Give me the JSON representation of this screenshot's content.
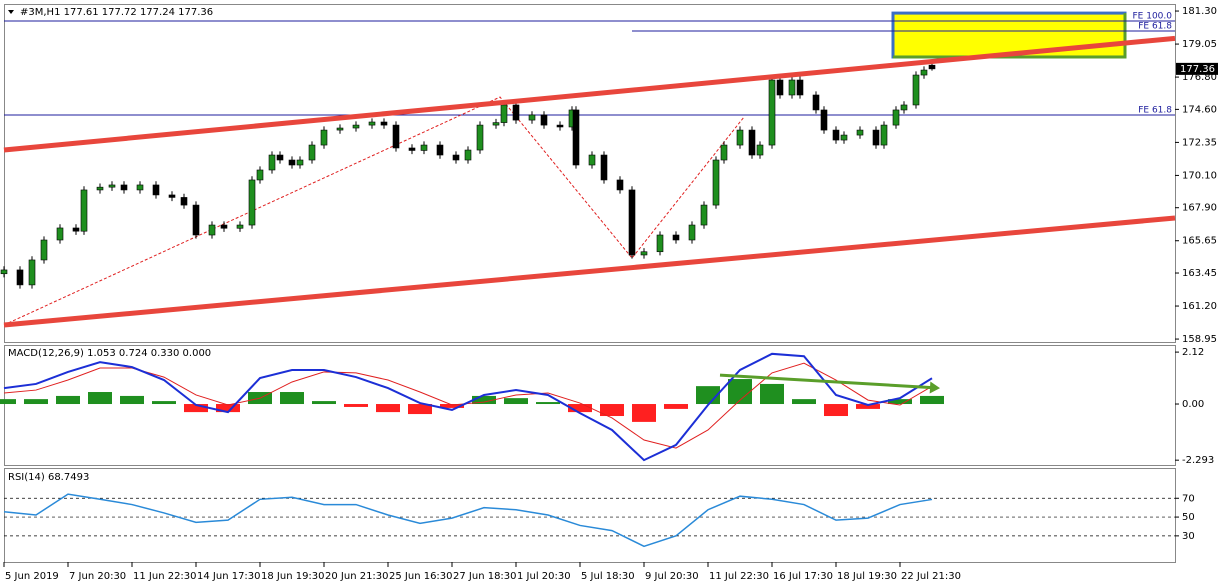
{
  "chart_data": [
    {
      "type": "candlestick",
      "title": "#3M,H1  177.61 177.72 177.24 177.36",
      "up_color": "#1f8f1f",
      "down_color": "#000000",
      "xlim": [
        0,
        292.75
      ],
      "xticks": [
        {
          "value": 0,
          "label": "5 Jun 2019"
        },
        {
          "value": 16,
          "label": "7 Jun 20:30"
        },
        {
          "value": 32,
          "label": "11 Jun 22:30"
        },
        {
          "value": 48,
          "label": "14 Jun 17:30"
        },
        {
          "value": 64,
          "label": "18 Jun 19:30"
        },
        {
          "value": 80,
          "label": "20 Jun 21:30"
        },
        {
          "value": 96,
          "label": "25 Jun 16:30"
        },
        {
          "value": 112,
          "label": "27 Jun 18:30"
        },
        {
          "value": 128,
          "label": "1 Jul 20:30"
        },
        {
          "value": 144,
          "label": "5 Jul 18:30"
        },
        {
          "value": 160,
          "label": "9 Jul 20:30"
        },
        {
          "value": 176,
          "label": "11 Jul 22:30"
        },
        {
          "value": 192,
          "label": "16 Jul 17:30"
        },
        {
          "value": 208,
          "label": "18 Jul 19:30"
        },
        {
          "value": 224,
          "label": "22 Jul 21:30"
        }
      ],
      "ylim": [
        158.75,
        181.78
      ],
      "yticks": [
        {
          "value": 181.3,
          "label": "181.30"
        },
        179.05,
        {
          "value": 176.8,
          "label": "176.80"
        },
        {
          "value": 174.6,
          "label": "174.60"
        },
        172.35,
        {
          "value": 170.1,
          "label": "170.10"
        },
        {
          "value": 167.9,
          "label": "167.90"
        },
        165.65,
        163.45,
        {
          "value": 161.2,
          "label": "161.20"
        },
        158.95
      ],
      "candles": [
        {
          "x": 0,
          "open": 163.4,
          "high": 163.91,
          "low": 163.15,
          "close": 163.66
        },
        {
          "x": 4,
          "open": 163.66,
          "high": 163.91,
          "low": 162.39,
          "close": 162.64
        },
        {
          "x": 7,
          "open": 162.64,
          "high": 164.59,
          "low": 162.39,
          "close": 164.34
        },
        {
          "x": 10,
          "open": 164.34,
          "high": 165.95,
          "low": 164.09,
          "close": 165.7
        },
        {
          "x": 14,
          "open": 165.7,
          "high": 166.77,
          "low": 165.45,
          "close": 166.52
        },
        {
          "x": 18,
          "open": 166.52,
          "high": 166.77,
          "low": 166.05,
          "close": 166.3
        },
        {
          "x": 20,
          "open": 166.3,
          "high": 169.36,
          "low": 166.05,
          "close": 169.11
        },
        {
          "x": 24,
          "open": 169.11,
          "high": 169.55,
          "low": 168.86,
          "close": 169.3
        },
        {
          "x": 27,
          "open": 169.3,
          "high": 169.7,
          "low": 169.05,
          "close": 169.45
        },
        {
          "x": 30,
          "open": 169.45,
          "high": 169.7,
          "low": 168.86,
          "close": 169.11
        },
        {
          "x": 34,
          "open": 169.11,
          "high": 169.7,
          "low": 168.86,
          "close": 169.45
        },
        {
          "x": 38,
          "open": 169.45,
          "high": 169.7,
          "low": 168.52,
          "close": 168.77
        },
        {
          "x": 42,
          "open": 168.77,
          "high": 169.02,
          "low": 168.35,
          "close": 168.6
        },
        {
          "x": 45,
          "open": 168.6,
          "high": 168.85,
          "low": 167.83,
          "close": 168.08
        },
        {
          "x": 48,
          "open": 168.08,
          "high": 168.33,
          "low": 165.79,
          "close": 166.04
        },
        {
          "x": 52,
          "open": 166.04,
          "high": 166.97,
          "low": 165.79,
          "close": 166.72
        },
        {
          "x": 55,
          "open": 166.72,
          "high": 166.97,
          "low": 166.25,
          "close": 166.5
        },
        {
          "x": 59,
          "open": 166.5,
          "high": 166.97,
          "low": 166.25,
          "close": 166.72
        },
        {
          "x": 62,
          "open": 166.72,
          "high": 170.04,
          "low": 166.47,
          "close": 169.79
        },
        {
          "x": 64,
          "open": 169.79,
          "high": 170.72,
          "low": 169.54,
          "close": 170.47
        },
        {
          "x": 67,
          "open": 170.47,
          "high": 171.74,
          "low": 170.22,
          "close": 171.49
        },
        {
          "x": 69,
          "open": 171.49,
          "high": 171.74,
          "low": 170.9,
          "close": 171.15
        },
        {
          "x": 72,
          "open": 171.15,
          "high": 171.4,
          "low": 170.56,
          "close": 170.81
        },
        {
          "x": 74,
          "open": 170.81,
          "high": 171.4,
          "low": 170.56,
          "close": 171.15
        },
        {
          "x": 77,
          "open": 171.15,
          "high": 172.42,
          "low": 170.9,
          "close": 172.17
        },
        {
          "x": 80,
          "open": 172.17,
          "high": 173.44,
          "low": 171.92,
          "close": 173.19
        },
        {
          "x": 84,
          "open": 173.19,
          "high": 173.58,
          "low": 172.94,
          "close": 173.33
        },
        {
          "x": 88,
          "open": 173.33,
          "high": 173.78,
          "low": 173.08,
          "close": 173.53
        },
        {
          "x": 92,
          "open": 173.53,
          "high": 173.99,
          "low": 173.28,
          "close": 173.74
        },
        {
          "x": 95,
          "open": 173.74,
          "high": 173.99,
          "low": 173.28,
          "close": 173.53
        },
        {
          "x": 98,
          "open": 173.53,
          "high": 173.78,
          "low": 171.72,
          "close": 171.97
        },
        {
          "x": 102,
          "open": 171.97,
          "high": 172.22,
          "low": 171.55,
          "close": 171.8
        },
        {
          "x": 105,
          "open": 171.8,
          "high": 172.42,
          "low": 171.55,
          "close": 172.17
        },
        {
          "x": 109,
          "open": 172.17,
          "high": 172.42,
          "low": 171.24,
          "close": 171.49
        },
        {
          "x": 113,
          "open": 171.49,
          "high": 171.74,
          "low": 170.9,
          "close": 171.15
        },
        {
          "x": 116,
          "open": 171.15,
          "high": 172.08,
          "low": 170.9,
          "close": 171.83
        },
        {
          "x": 119,
          "open": 171.83,
          "high": 173.78,
          "low": 171.58,
          "close": 173.53
        },
        {
          "x": 123,
          "open": 173.53,
          "high": 173.95,
          "low": 173.28,
          "close": 173.7
        },
        {
          "x": 125,
          "open": 173.7,
          "high": 175.15,
          "low": 173.45,
          "close": 174.9
        },
        {
          "x": 128,
          "open": 174.9,
          "high": 175.15,
          "low": 173.62,
          "close": 173.87
        },
        {
          "x": 132,
          "open": 173.87,
          "high": 174.47,
          "low": 173.62,
          "close": 174.22
        },
        {
          "x": 135,
          "open": 174.22,
          "high": 174.47,
          "low": 173.28,
          "close": 173.53
        },
        {
          "x": 139,
          "open": 173.53,
          "high": 173.78,
          "low": 173.15,
          "close": 173.4
        },
        {
          "x": 142,
          "open": 173.4,
          "high": 174.81,
          "low": 173.15,
          "close": 174.56
        },
        {
          "x": 143,
          "open": 174.56,
          "high": 174.81,
          "low": 170.56,
          "close": 170.81
        },
        {
          "x": 147,
          "open": 170.81,
          "high": 171.74,
          "low": 170.56,
          "close": 171.49
        },
        {
          "x": 150,
          "open": 171.49,
          "high": 171.74,
          "low": 169.54,
          "close": 169.79
        },
        {
          "x": 154,
          "open": 169.79,
          "high": 170.04,
          "low": 168.86,
          "close": 169.11
        },
        {
          "x": 157,
          "open": 169.11,
          "high": 169.36,
          "low": 164.43,
          "close": 164.68
        },
        {
          "x": 160,
          "open": 164.68,
          "high": 165.15,
          "low": 164.43,
          "close": 164.9
        },
        {
          "x": 164,
          "open": 164.9,
          "high": 166.29,
          "low": 164.65,
          "close": 166.04
        },
        {
          "x": 168,
          "open": 166.04,
          "high": 166.29,
          "low": 165.45,
          "close": 165.7
        },
        {
          "x": 172,
          "open": 165.7,
          "high": 166.97,
          "low": 165.45,
          "close": 166.72
        },
        {
          "x": 175,
          "open": 166.72,
          "high": 168.33,
          "low": 166.47,
          "close": 168.08
        },
        {
          "x": 178,
          "open": 168.08,
          "high": 171.4,
          "low": 167.83,
          "close": 171.15
        },
        {
          "x": 180,
          "open": 171.15,
          "high": 172.42,
          "low": 170.9,
          "close": 172.17
        },
        {
          "x": 184,
          "open": 172.17,
          "high": 173.44,
          "low": 171.92,
          "close": 173.19
        },
        {
          "x": 187,
          "open": 173.19,
          "high": 173.44,
          "low": 171.24,
          "close": 171.49
        },
        {
          "x": 189,
          "open": 171.49,
          "high": 172.42,
          "low": 171.24,
          "close": 172.17
        },
        {
          "x": 192,
          "open": 172.17,
          "high": 176.85,
          "low": 171.92,
          "close": 176.6
        },
        {
          "x": 194,
          "open": 176.6,
          "high": 176.85,
          "low": 175.33,
          "close": 175.58
        },
        {
          "x": 197,
          "open": 175.58,
          "high": 176.85,
          "low": 175.33,
          "close": 176.6
        },
        {
          "x": 199,
          "open": 176.6,
          "high": 176.85,
          "low": 175.33,
          "close": 175.58
        },
        {
          "x": 203,
          "open": 175.58,
          "high": 175.83,
          "low": 174.31,
          "close": 174.56
        },
        {
          "x": 205,
          "open": 174.56,
          "high": 174.81,
          "low": 172.94,
          "close": 173.19
        },
        {
          "x": 208,
          "open": 173.19,
          "high": 173.44,
          "low": 172.26,
          "close": 172.51
        },
        {
          "x": 210,
          "open": 172.51,
          "high": 173.1,
          "low": 172.26,
          "close": 172.85
        },
        {
          "x": 214,
          "open": 172.85,
          "high": 173.44,
          "low": 172.6,
          "close": 173.19
        },
        {
          "x": 218,
          "open": 173.19,
          "high": 173.44,
          "low": 171.92,
          "close": 172.17
        },
        {
          "x": 220,
          "open": 172.17,
          "high": 173.78,
          "low": 171.92,
          "close": 173.53
        },
        {
          "x": 223,
          "open": 173.53,
          "high": 174.81,
          "low": 173.28,
          "close": 174.56
        },
        {
          "x": 225,
          "open": 174.56,
          "high": 175.15,
          "low": 174.31,
          "close": 174.9
        },
        {
          "x": 228,
          "open": 174.9,
          "high": 177.19,
          "low": 174.65,
          "close": 176.94
        },
        {
          "x": 230,
          "open": 176.94,
          "high": 177.53,
          "low": 176.69,
          "close": 177.28
        },
        {
          "x": 232,
          "open": 177.61,
          "high": 177.72,
          "low": 177.24,
          "close": 177.36
        }
      ],
      "levels": [
        {
          "label": "FE 100.0",
          "value": 180.62,
          "x_start": 0
        },
        {
          "label": "FE 61.8",
          "value": 179.94,
          "x_start": 157
        },
        {
          "label": "FE 61.8",
          "value": 174.22,
          "x_start": 0
        }
      ],
      "level_color": "#1c1c9c",
      "trendlines": [
        {
          "x": [
            0,
            292.75
          ],
          "values": [
            171.83,
            179.44
          ],
          "color": "#e8463c"
        },
        {
          "x": [
            0,
            292.75
          ],
          "values": [
            159.91,
            167.2
          ],
          "color": "#e8463c"
        }
      ],
      "zigzag": {
        "x": [
          0,
          124,
          157,
          185
        ],
        "values": [
          159.91,
          175.44,
          164.47,
          174.08
        ],
        "color": "#e02020"
      },
      "zone": {
        "x": [
          222.25,
          280.25
        ],
        "values": [
          181.16,
          178.17
        ],
        "color": "#ffff00",
        "border": "#3a6fc4",
        "edge": "#5a9e2a"
      }
    },
    {
      "type": "macd",
      "title": "MACD(12,26,9) 1.053 0.724 0.330 0.000",
      "xlim": [
        0,
        292.75
      ],
      "ylim": [
        -2.49,
        2.41
      ],
      "yticks": [
        2.12,
        {
          "value": 0,
          "label": "0.00"
        },
        -2.293
      ],
      "x": [
        0,
        8,
        16,
        24,
        32,
        40,
        48,
        56,
        64,
        72,
        80,
        88,
        96,
        104,
        112,
        120,
        128,
        136,
        144,
        152,
        160,
        168,
        176,
        184,
        192,
        200,
        208,
        216,
        224,
        232
      ],
      "histogram": {
        "up_color": "#1f8f1f",
        "down_color": "#ff2020",
        "values": [
          0.2,
          0.2,
          0.33,
          0.49,
          0.33,
          0.12,
          -0.33,
          -0.33,
          0.49,
          0.49,
          0.12,
          -0.12,
          -0.33,
          -0.41,
          -0.16,
          0.33,
          0.24,
          0.08,
          -0.33,
          -0.49,
          -0.73,
          -0.2,
          0.73,
          1.02,
          0.82,
          0.2,
          -0.49,
          -0.2,
          0.2,
          0.33
        ]
      },
      "macd": {
        "color": "#1c2fd6",
        "values": [
          0.65,
          0.82,
          1.31,
          1.71,
          1.51,
          0.98,
          -0.04,
          -0.33,
          1.06,
          1.39,
          1.39,
          1.1,
          0.65,
          0.04,
          -0.24,
          0.37,
          0.57,
          0.37,
          -0.37,
          -1.06,
          -2.29,
          -1.67,
          -0.04,
          1.39,
          2.05,
          1.95,
          0.37,
          -0.04,
          0.24,
          1.053
        ]
      },
      "signal": {
        "color": "#e02020",
        "values": [
          0.45,
          0.57,
          0.98,
          1.47,
          1.47,
          1.1,
          0.37,
          -0.04,
          0.24,
          0.9,
          1.31,
          1.27,
          0.98,
          0.49,
          -0.04,
          0.08,
          0.37,
          0.45,
          0.04,
          -0.57,
          -1.47,
          -1.8,
          -1.06,
          0.16,
          1.27,
          1.67,
          0.98,
          0.16,
          -0.04,
          0.724
        ]
      },
      "arrow": {
        "x": [
          179,
          234
        ],
        "values": [
          1.18,
          0.65
        ],
        "color": "#5a9e2a"
      }
    },
    {
      "type": "line",
      "title": "RSI(14) 68.7493",
      "xlim": [
        0,
        292.75
      ],
      "ylim": [
        2.2,
        102.2
      ],
      "yticks": [
        70,
        50,
        30
      ],
      "grid": true,
      "color": "#2a8ad8",
      "x": [
        0,
        8,
        16,
        24,
        32,
        40,
        48,
        56,
        64,
        72,
        80,
        88,
        96,
        104,
        112,
        120,
        128,
        136,
        144,
        152,
        160,
        168,
        176,
        184,
        192,
        200,
        208,
        216,
        224,
        232
      ],
      "values": [
        55.6,
        52.2,
        74.4,
        68.9,
        63.3,
        54.4,
        44.4,
        46.7,
        68.9,
        71.1,
        63.3,
        63.3,
        52.2,
        43.3,
        48.9,
        60.0,
        57.8,
        52.2,
        41.1,
        35.6,
        18.9,
        30.0,
        57.8,
        72.2,
        68.9,
        63.3,
        46.7,
        48.9,
        63.3,
        68.7493
      ]
    }
  ]
}
